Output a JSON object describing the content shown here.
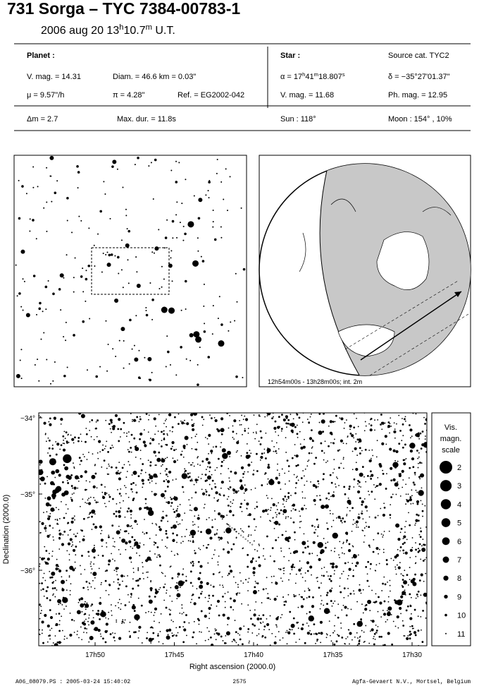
{
  "header": {
    "title": "731 Sorga  –  TYC 7384-00783-1",
    "subtitle": [
      {
        "t": "2006 aug 20  13"
      },
      {
        "t": "h",
        "sup": true
      },
      {
        "t": "10.7"
      },
      {
        "t": "m",
        "sup": true
      },
      {
        "t": " U.T."
      }
    ]
  },
  "planet": {
    "heading": "Planet :",
    "vmag": "V. mag. = 14.31",
    "diam": "Diam. = 46.6 km = 0.03\"",
    "mu": "μ =  9.57\"/h",
    "pi": "π =  4.28\"",
    "ref": "Ref. = EG2002-042"
  },
  "star": {
    "heading": "Star :",
    "source": "Source cat.  TYC2",
    "alpha": [
      {
        "t": "α = 17"
      },
      {
        "t": "h",
        "sup": true
      },
      {
        "t": "41"
      },
      {
        "t": "m",
        "sup": true
      },
      {
        "t": "18.807"
      },
      {
        "t": "s",
        "sup": true
      }
    ],
    "delta": "δ = −35°27'01.37\"",
    "vmag": "V. mag. = 11.68",
    "phmag": "Ph. mag. = 12.95"
  },
  "event": {
    "dm": "Δm = 2.7",
    "maxdur": "Max. dur. = 11.8s",
    "sun": "Sun : 118°",
    "moon": "Moon : 154° , 10%"
  },
  "globe": {
    "caption": "12h54m00s - 13h28m00s; int.  2m"
  },
  "star_chart": {
    "yticks": [
      "−34°",
      "−35°",
      "−36°"
    ],
    "xticks": [
      "17h50",
      "17h45",
      "17h40",
      "17h35",
      "17h30"
    ],
    "xlabel": "Right ascension (2000.0)",
    "ylabel": "Declination (2000.0)",
    "scale_title": [
      "Vis.",
      "magn.",
      "scale"
    ],
    "scale": [
      "2",
      "3",
      "4",
      "5",
      "6",
      "7",
      "8",
      "9",
      "10",
      "11"
    ]
  },
  "footer": {
    "file": "A06_08079.PS : 2005-03-24 15:40:02",
    "page": "2575",
    "company": "Agfa-Gevaert N.V., Mortsel, Belgium"
  }
}
